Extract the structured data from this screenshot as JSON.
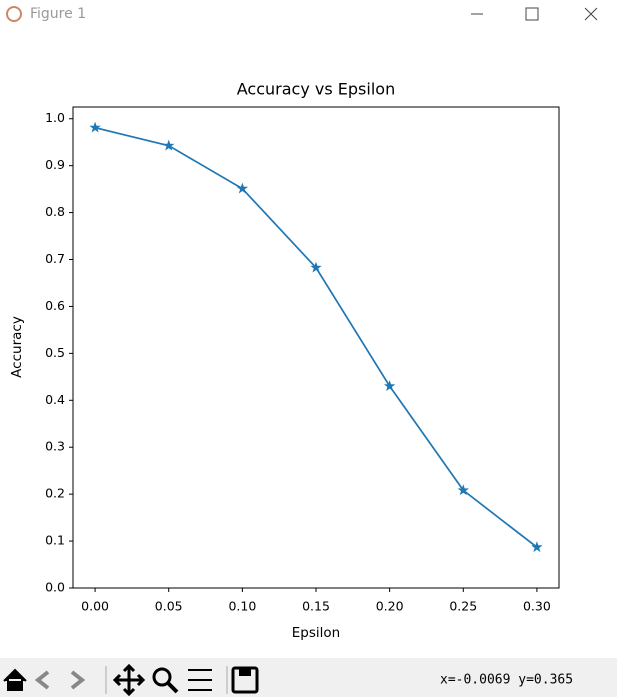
{
  "window": {
    "title": "Figure 1"
  },
  "chart_data": {
    "type": "line",
    "title": "Accuracy vs Epsilon",
    "x_label": "Epsilon",
    "y_label": "Accuracy",
    "x": [
      0,
      0.05,
      0.1,
      0.15,
      0.2,
      0.25,
      0.3
    ],
    "series": [
      {
        "name": "Accuracy",
        "color": "#1f77b4",
        "marker": "star",
        "values": [
          0.981,
          0.9426,
          0.851,
          0.6826,
          0.4301,
          0.2082,
          0.0869
        ]
      }
    ],
    "xlim": [
      -0.015,
      0.315
    ],
    "xticks": [
      {
        "value": 0,
        "label": "0.00"
      },
      0.05,
      {
        "value": 0.1,
        "label": "0.10"
      },
      0.15,
      {
        "value": 0.2,
        "label": "0.20"
      },
      0.25,
      {
        "value": 0.3,
        "label": "0.30"
      }
    ],
    "ylim": [
      0,
      1.025
    ],
    "yticks": [
      {
        "value": 0,
        "label": "0.0"
      },
      0.1,
      0.2,
      0.3,
      0.4,
      0.5,
      0.6,
      0.7,
      0.8,
      0.9,
      {
        "value": 1,
        "label": "1.0"
      }
    ],
    "grid": false
  },
  "toolbar": {
    "coordinates": "x=-0.0069 y=0.365"
  }
}
